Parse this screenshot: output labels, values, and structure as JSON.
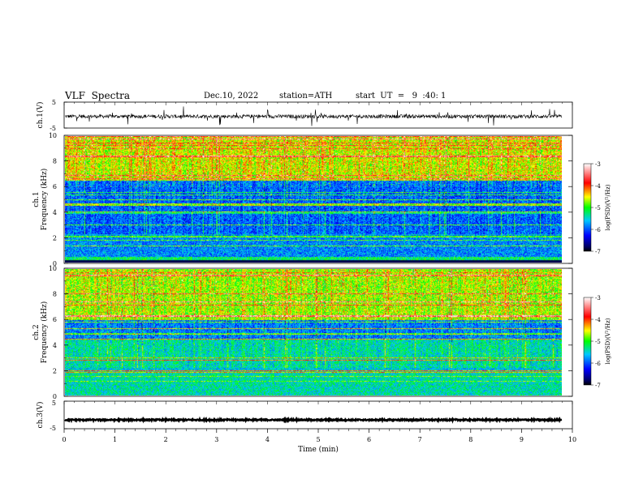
{
  "header": {
    "title": "VLF  Spectra",
    "date": "Dec.10, 2022",
    "station": "station=ATH",
    "start": "start  UT  =   9  :40: 1"
  },
  "colorbar": {
    "label": "log(PSD)(V²/Hz)",
    "ticks": [
      "-3",
      "-4",
      "-5",
      "-6",
      "-7"
    ],
    "range": [
      -7,
      -3
    ],
    "colors": [
      "#000000",
      "#0000ff",
      "#00c8ff",
      "#00ff00",
      "#ffff00",
      "#ff0000",
      "#ffffff"
    ]
  },
  "chart_data": [
    {
      "type": "line",
      "name": "ch.1",
      "ylabel": "ch.1(V)",
      "ylim": [
        -5,
        5
      ],
      "yticks": [
        "5",
        "-5"
      ],
      "xlim": [
        0,
        10
      ],
      "baseline": -0.5
    },
    {
      "type": "heatmap",
      "name": "ch.1",
      "ylabel": "ch.1\nFrequency (kHz)",
      "ylabel_top": "ch.1",
      "ylabel_bottom": "Frequency (kHz)",
      "ylim": [
        0,
        10
      ],
      "yticks": [
        "0",
        "2",
        "4",
        "6",
        "8",
        "10"
      ],
      "xlim": [
        0,
        9.8
      ],
      "color_scale": "log(PSD)(V²/Hz)"
    },
    {
      "type": "heatmap",
      "name": "ch.2",
      "ylabel_top": "ch.2",
      "ylabel_bottom": "Frequency (kHz)",
      "ylim": [
        0,
        10
      ],
      "yticks": [
        "0",
        "2",
        "4",
        "6",
        "8",
        "10"
      ],
      "xlim": [
        0,
        9.8
      ],
      "color_scale": "log(PSD)(V²/Hz)"
    },
    {
      "type": "line",
      "name": "ch.3",
      "ylabel": "ch.3(V)",
      "ylim": [
        -5,
        5
      ],
      "yticks": [
        "5",
        "-5"
      ],
      "xlim": [
        0,
        10
      ],
      "baseline": -1.8
    }
  ],
  "xaxis": {
    "label": "Time  (min)",
    "ticks": [
      "0",
      "1",
      "2",
      "3",
      "4",
      "5",
      "6",
      "7",
      "8",
      "9",
      "10"
    ],
    "range": [
      0,
      10
    ]
  }
}
